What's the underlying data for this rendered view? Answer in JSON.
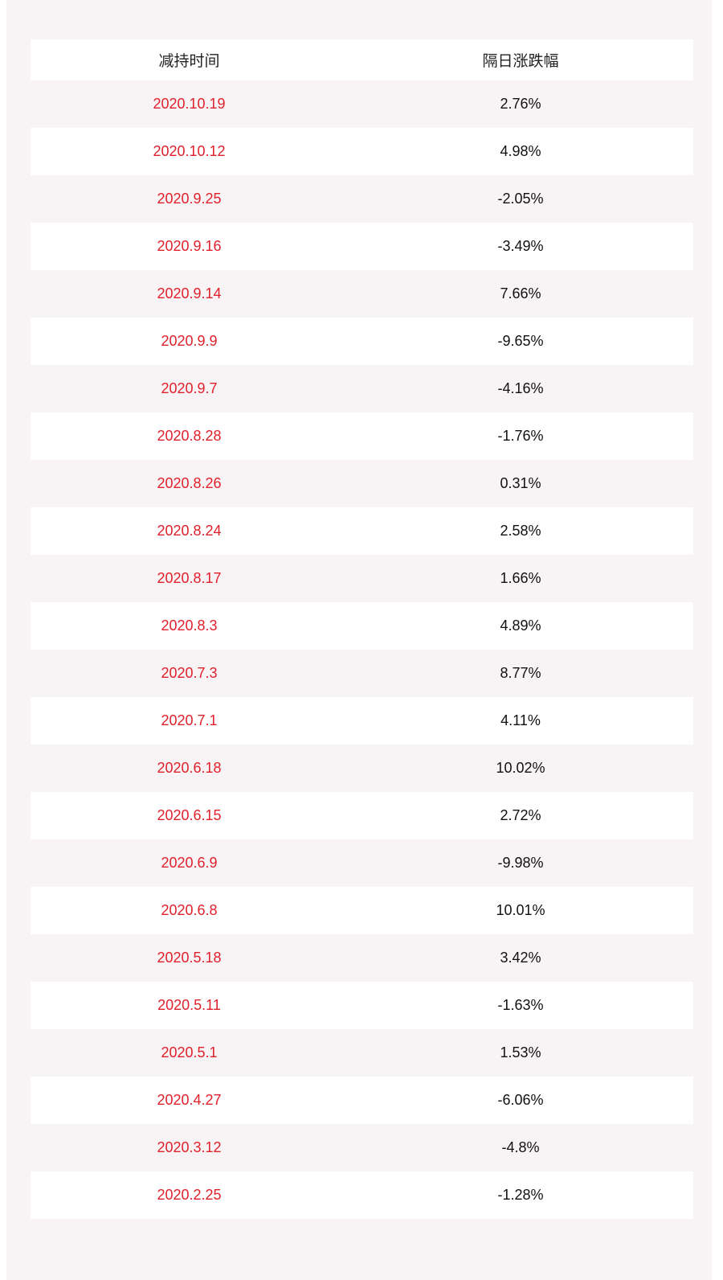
{
  "table": {
    "header": [
      "减持时间",
      "隔日涨跌幅"
    ],
    "rows": [
      [
        "2020.10.19",
        "2.76%"
      ],
      [
        "2020.10.12",
        "4.98%"
      ],
      [
        "2020.9.25",
        "-2.05%"
      ],
      [
        "2020.9.16",
        "-3.49%"
      ],
      [
        "2020.9.14",
        "7.66%"
      ],
      [
        "2020.9.9",
        "-9.65%"
      ],
      [
        "2020.9.7",
        "-4.16%"
      ],
      [
        "2020.8.28",
        "-1.76%"
      ],
      [
        "2020.8.26",
        "0.31%"
      ],
      [
        "2020.8.24",
        "2.58%"
      ],
      [
        "2020.8.17",
        "1.66%"
      ],
      [
        "2020.8.3",
        "4.89%"
      ],
      [
        "2020.7.3",
        "8.77%"
      ],
      [
        "2020.7.1",
        "4.11%"
      ],
      [
        "2020.6.18",
        "10.02%"
      ],
      [
        "2020.6.15",
        "2.72%"
      ],
      [
        "2020.6.9",
        "-9.98%"
      ],
      [
        "2020.6.8",
        "10.01%"
      ],
      [
        "2020.5.18",
        "3.42%"
      ],
      [
        "2020.5.11",
        "-1.63%"
      ],
      [
        "2020.5.1",
        "1.53%"
      ],
      [
        "2020.4.27",
        "-6.06%"
      ],
      [
        "2020.3.12",
        "-4.8%"
      ],
      [
        "2020.2.25",
        "-1.28%"
      ]
    ]
  }
}
